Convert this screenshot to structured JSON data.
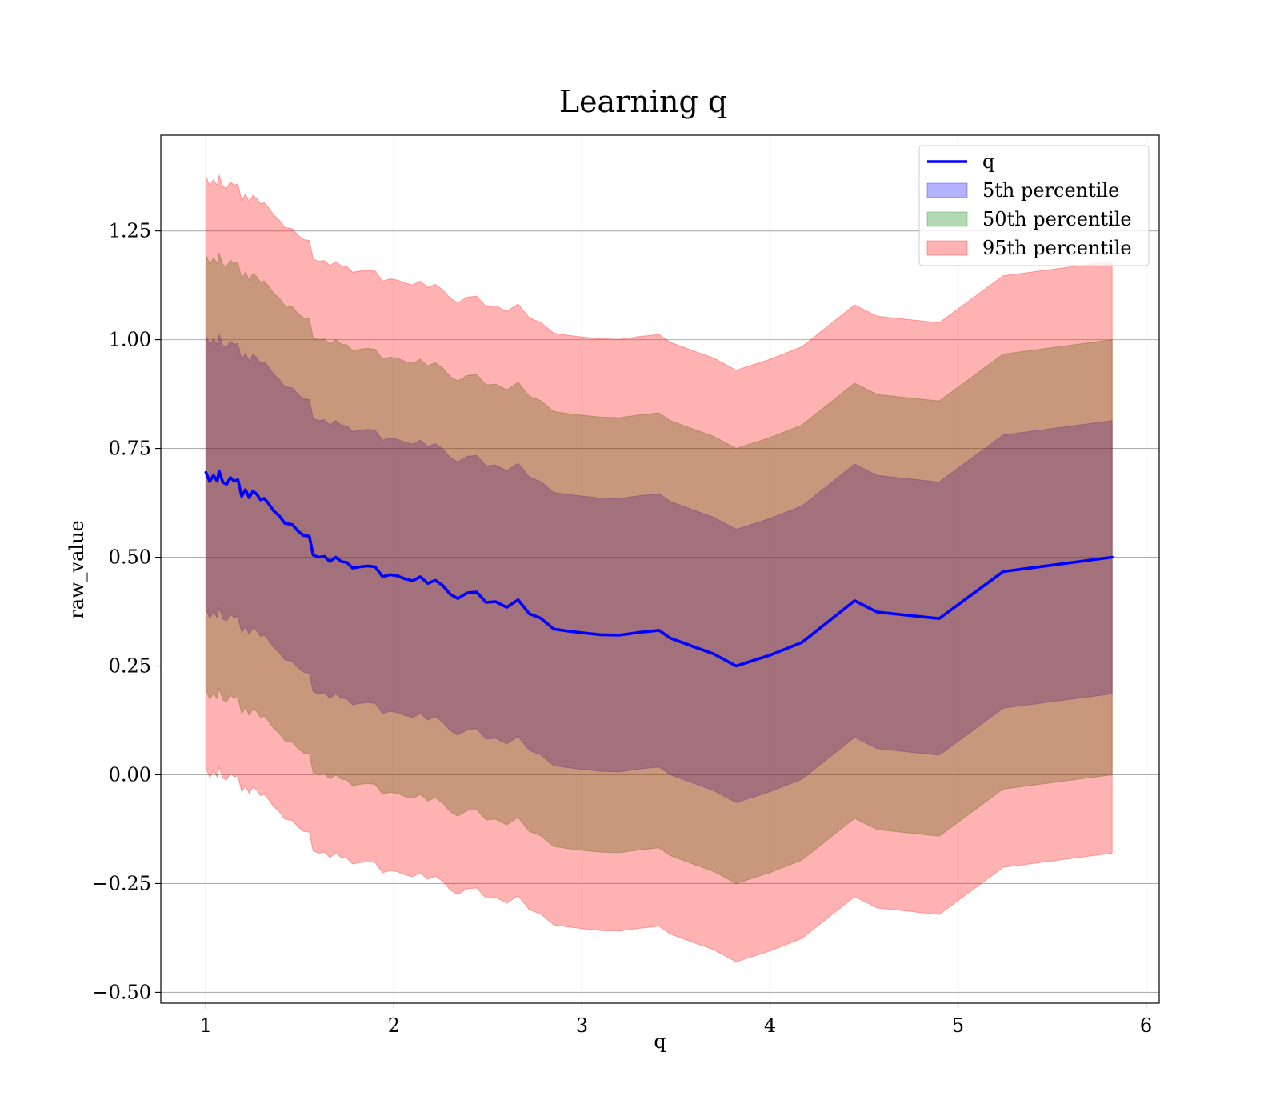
{
  "chart_data": {
    "type": "line",
    "title": "Learning q",
    "xlabel": "q",
    "ylabel": "raw_value",
    "xlim": [
      0.76,
      6.07
    ],
    "ylim": [
      -0.525,
      1.47
    ],
    "x_ticks": [
      1,
      2,
      3,
      4,
      5,
      6
    ],
    "x_tick_labels": [
      "1",
      "2",
      "3",
      "4",
      "5",
      "6"
    ],
    "y_ticks": [
      -0.5,
      -0.25,
      0.0,
      0.25,
      0.5,
      0.75,
      1.0,
      1.25
    ],
    "y_tick_labels": [
      "−0.50",
      "−0.25",
      "0.00",
      "0.25",
      "0.50",
      "0.75",
      "1.00",
      "1.25"
    ],
    "grid": true,
    "legend_position": "top-right",
    "legend": [
      {
        "label": "q",
        "kind": "line",
        "color": "#0000ff"
      },
      {
        "label": "5th percentile",
        "kind": "patch",
        "color": "#0000ff"
      },
      {
        "label": "50th percentile",
        "kind": "patch",
        "color": "#008000"
      },
      {
        "label": "95th percentile",
        "kind": "patch",
        "color": "#ff0000"
      }
    ],
    "series": [
      {
        "name": "q",
        "x": [
          1.0,
          1.02,
          1.04,
          1.06,
          1.07,
          1.09,
          1.11,
          1.13,
          1.15,
          1.17,
          1.19,
          1.21,
          1.23,
          1.25,
          1.27,
          1.29,
          1.31,
          1.33,
          1.36,
          1.39,
          1.42,
          1.46,
          1.49,
          1.52,
          1.55,
          1.57,
          1.6,
          1.63,
          1.66,
          1.69,
          1.72,
          1.75,
          1.78,
          1.82,
          1.86,
          1.9,
          1.94,
          1.98,
          2.02,
          2.06,
          2.1,
          2.14,
          2.18,
          2.22,
          2.26,
          2.3,
          2.34,
          2.39,
          2.44,
          2.49,
          2.54,
          2.6,
          2.66,
          2.72,
          2.78,
          2.85,
          2.93,
          3.01,
          3.1,
          3.2,
          3.3,
          3.41,
          3.47,
          3.59,
          3.7,
          3.82,
          4.0,
          4.17,
          4.45,
          4.57,
          4.9,
          5.24,
          5.82
        ],
        "y": [
          0.695,
          0.674,
          0.688,
          0.675,
          0.698,
          0.672,
          0.668,
          0.683,
          0.675,
          0.678,
          0.64,
          0.655,
          0.637,
          0.652,
          0.645,
          0.632,
          0.635,
          0.625,
          0.607,
          0.595,
          0.578,
          0.575,
          0.56,
          0.55,
          0.548,
          0.505,
          0.5,
          0.502,
          0.49,
          0.5,
          0.49,
          0.488,
          0.475,
          0.478,
          0.48,
          0.478,
          0.455,
          0.46,
          0.457,
          0.45,
          0.446,
          0.455,
          0.44,
          0.447,
          0.435,
          0.415,
          0.405,
          0.418,
          0.42,
          0.396,
          0.398,
          0.385,
          0.402,
          0.37,
          0.36,
          0.335,
          0.33,
          0.326,
          0.322,
          0.321,
          0.327,
          0.332,
          0.314,
          0.295,
          0.278,
          0.25,
          0.275,
          0.304,
          0.4,
          0.374,
          0.359,
          0.467,
          0.5
        ],
        "color": "#0000ff"
      },
      {
        "name": "5th percentile",
        "kind": "band",
        "half_width": 0.314,
        "color": "#0000ff",
        "alpha": 0.3
      },
      {
        "name": "50th percentile",
        "kind": "band",
        "half_width": 0.5,
        "color": "#008000",
        "alpha": 0.3
      },
      {
        "name": "95th percentile",
        "kind": "band",
        "half_width": 0.68,
        "color": "#ff0000",
        "alpha": 0.3
      }
    ]
  }
}
